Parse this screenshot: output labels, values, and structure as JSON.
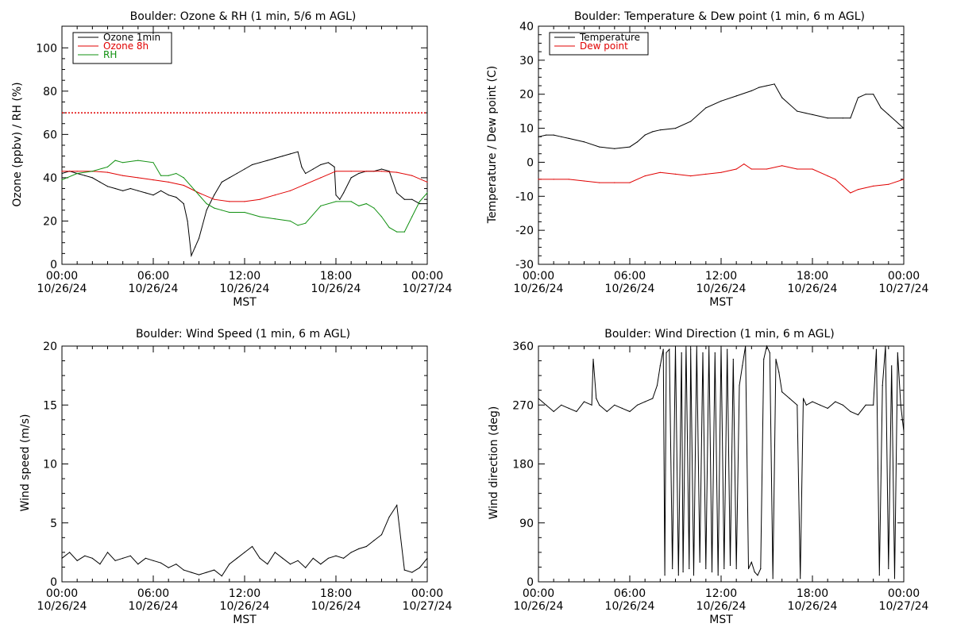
{
  "colors": {
    "black": "#000000",
    "red": "#e00000",
    "green": "#109010",
    "reference_line": "#e00000"
  },
  "x_axis_common": {
    "times": [
      "00:00",
      "06:00",
      "12:00",
      "18:00",
      "00:00"
    ],
    "dates": [
      "10/26/24",
      "10/26/24",
      "10/26/24",
      "10/26/24",
      "10/27/24"
    ],
    "label_hours": [
      0,
      6,
      12,
      18,
      24
    ],
    "xlabel": "MST"
  },
  "chart_data": [
    {
      "type": "line",
      "title": "Boulder: Ozone & RH (1 min, 5/6 m AGL)",
      "xlabel": "MST",
      "ylabel": "Ozone (ppbv) / RH (%)",
      "xlim_hours": [
        0,
        24
      ],
      "ylim": [
        0,
        110
      ],
      "yticks": [
        0,
        20,
        40,
        60,
        80,
        100
      ],
      "legend_position": "top-left",
      "reference_line": {
        "y": 70,
        "style": "dotted"
      },
      "series": [
        {
          "name": "Ozone 1min",
          "color": "#000000",
          "x": [
            0,
            0.5,
            1,
            1.5,
            2,
            2.5,
            3,
            3.5,
            4,
            4.5,
            5,
            5.5,
            6,
            6.5,
            7,
            7.5,
            8,
            8.25,
            8.5,
            8.75,
            9,
            9.5,
            10,
            10.5,
            11,
            11.5,
            12,
            12.5,
            13,
            13.5,
            14,
            14.5,
            15,
            15.5,
            15.75,
            16,
            16.5,
            17,
            17.5,
            17.9,
            18,
            18.25,
            18.5,
            19,
            19.5,
            20,
            20.5,
            21,
            21.5,
            22,
            22.5,
            23,
            23.5,
            24
          ],
          "y": [
            42,
            43,
            42,
            41,
            40,
            38,
            36,
            35,
            34,
            35,
            34,
            33,
            32,
            34,
            32,
            31,
            28,
            20,
            4,
            8,
            12,
            25,
            32,
            38,
            40,
            42,
            44,
            46,
            47,
            48,
            49,
            50,
            51,
            52,
            45,
            42,
            44,
            46,
            47,
            45,
            32,
            30,
            33,
            40,
            42,
            43,
            43,
            44,
            43,
            33,
            30,
            30,
            28,
            28
          ]
        },
        {
          "name": "Ozone 8h",
          "color": "#e00000",
          "x": [
            0,
            1,
            2,
            3,
            4,
            5,
            6,
            7,
            8,
            9,
            10,
            11,
            12,
            13,
            14,
            15,
            16,
            17,
            18,
            19,
            20,
            21,
            22,
            23,
            24
          ],
          "y": [
            43,
            43,
            43,
            42.5,
            41,
            40,
            39,
            38,
            36.5,
            33,
            30,
            29,
            29,
            30,
            32,
            34,
            37,
            40,
            43,
            43,
            43,
            43,
            42.5,
            41,
            38
          ]
        },
        {
          "name": "RH",
          "color": "#109010",
          "x": [
            0,
            1,
            2,
            3,
            3.5,
            4,
            5,
            6,
            6.5,
            7,
            7.5,
            8,
            8.5,
            9,
            9.5,
            10,
            10.5,
            11,
            12,
            13,
            14,
            15,
            15.5,
            16,
            17,
            18,
            19,
            19.5,
            20,
            20.5,
            21,
            21.5,
            22,
            22.5,
            23,
            23.5,
            24
          ],
          "y": [
            39,
            42,
            43,
            45,
            48,
            47,
            48,
            47,
            41,
            41,
            42,
            40,
            36,
            32,
            28,
            26,
            25,
            24,
            24,
            22,
            21,
            20,
            18,
            19,
            27,
            29,
            29,
            27,
            28,
            26,
            22,
            17,
            15,
            15,
            22,
            29,
            33
          ]
        }
      ]
    },
    {
      "type": "line",
      "title": "Boulder: Temperature & Dew point (1 min, 6 m AGL)",
      "xlabel": "MST",
      "ylabel": "Temperature / Dew point (C)",
      "xlim_hours": [
        0,
        24
      ],
      "ylim": [
        -30,
        40
      ],
      "yticks": [
        -30,
        -20,
        -10,
        0,
        10,
        20,
        30,
        40
      ],
      "legend_position": "top-left",
      "series": [
        {
          "name": "Temperature",
          "color": "#000000",
          "x": [
            0,
            0.5,
            1,
            1.5,
            2,
            3,
            4,
            5,
            6,
            6.5,
            7,
            7.5,
            8,
            9,
            10,
            11,
            12,
            13,
            14,
            14.5,
            15,
            15.5,
            16,
            17,
            18,
            19,
            20,
            20.5,
            21,
            21.5,
            22,
            22.5,
            23,
            24
          ],
          "y": [
            7.5,
            8,
            8,
            7.5,
            7,
            6,
            4.5,
            4,
            4.5,
            6,
            8,
            9,
            9.5,
            10,
            12,
            16,
            18,
            19.5,
            21,
            22,
            22.5,
            23,
            19,
            15,
            14,
            13,
            13,
            13,
            19,
            20,
            20,
            16,
            14,
            10
          ]
        },
        {
          "name": "Dew point",
          "color": "#e00000",
          "x": [
            0,
            1,
            2,
            3,
            4,
            5,
            6,
            7,
            8,
            9,
            10,
            11,
            12,
            13,
            13.5,
            14,
            15,
            16,
            17,
            18,
            19,
            19.5,
            20,
            20.5,
            21,
            22,
            23,
            24
          ],
          "y": [
            -5,
            -5,
            -5,
            -5.5,
            -6,
            -6,
            -6,
            -4,
            -3,
            -3.5,
            -4,
            -3.5,
            -3,
            -2,
            -0.5,
            -2,
            -2,
            -1,
            -2,
            -2,
            -4,
            -5,
            -7,
            -9,
            -8,
            -7,
            -6.5,
            -5
          ]
        }
      ]
    },
    {
      "type": "line",
      "title": "Boulder: Wind Speed (1 min, 6 m AGL)",
      "xlabel": "MST",
      "ylabel": "Wind speed (m/s)",
      "xlim_hours": [
        0,
        24
      ],
      "ylim": [
        0,
        20
      ],
      "yticks": [
        0,
        5,
        10,
        15,
        20
      ],
      "series": [
        {
          "name": "",
          "color": "#000000",
          "x": [
            0,
            0.5,
            1,
            1.5,
            2,
            2.5,
            3,
            3.5,
            4,
            4.5,
            5,
            5.5,
            6,
            6.5,
            7,
            7.5,
            8,
            8.5,
            9,
            9.5,
            10,
            10.5,
            11,
            11.5,
            12,
            12.5,
            13,
            13.5,
            14,
            14.5,
            15,
            15.5,
            16,
            16.5,
            17,
            17.5,
            18,
            18.5,
            19,
            19.5,
            20,
            20.5,
            21,
            21.5,
            22,
            22.5,
            23,
            23.5,
            24
          ],
          "y": [
            2,
            2.5,
            1.8,
            2.2,
            2,
            1.5,
            2.5,
            1.8,
            2,
            2.2,
            1.5,
            2,
            1.8,
            1.6,
            1.2,
            1.5,
            1,
            0.8,
            0.6,
            0.8,
            1,
            0.5,
            1.5,
            2,
            2.5,
            3,
            2,
            1.5,
            2.5,
            2,
            1.5,
            1.8,
            1.2,
            2,
            1.5,
            2,
            2.2,
            2,
            2.5,
            2.8,
            3,
            3.5,
            4,
            5.5,
            6.5,
            1,
            0.8,
            1.2,
            2
          ]
        }
      ]
    },
    {
      "type": "line",
      "title": "Boulder: Wind Direction (1 min, 6 m AGL)",
      "xlabel": "MST",
      "ylabel": "Wind direction (deg)",
      "xlim_hours": [
        0,
        24
      ],
      "ylim": [
        0,
        360
      ],
      "yticks": [
        0,
        90,
        180,
        270,
        360
      ],
      "series": [
        {
          "name": "",
          "color": "#000000",
          "x": [
            0,
            0.5,
            1,
            1.5,
            2,
            2.5,
            3,
            3.5,
            3.6,
            3.8,
            4,
            4.5,
            5,
            5.5,
            6,
            6.5,
            7,
            7.5,
            7.8,
            8,
            8.2,
            8.3,
            8.4,
            8.6,
            8.8,
            9,
            9.2,
            9.4,
            9.5,
            9.7,
            9.9,
            10,
            10.2,
            10.4,
            10.6,
            10.8,
            11,
            11.2,
            11.4,
            11.6,
            11.8,
            12,
            12.2,
            12.4,
            12.6,
            12.8,
            13,
            13.2,
            13.4,
            13.6,
            13.8,
            14,
            14.2,
            14.4,
            14.6,
            14.8,
            15,
            15.2,
            15.4,
            15.6,
            15.8,
            16,
            16.5,
            17,
            17.2,
            17.4,
            17.6,
            18,
            18.5,
            19,
            19.5,
            20,
            20.5,
            21,
            21.5,
            22,
            22.2,
            22.4,
            22.6,
            22.8,
            23,
            23.2,
            23.4,
            23.6,
            23.8,
            24
          ],
          "y": [
            280,
            270,
            260,
            270,
            265,
            260,
            275,
            270,
            340,
            280,
            270,
            260,
            270,
            265,
            260,
            270,
            275,
            280,
            300,
            330,
            355,
            10,
            350,
            355,
            20,
            360,
            10,
            350,
            15,
            360,
            20,
            355,
            10,
            360,
            30,
            350,
            20,
            360,
            15,
            350,
            10,
            360,
            20,
            355,
            25,
            340,
            20,
            300,
            330,
            360,
            20,
            30,
            15,
            10,
            20,
            340,
            360,
            350,
            5,
            340,
            320,
            290,
            280,
            270,
            5,
            280,
            270,
            275,
            270,
            265,
            275,
            270,
            260,
            255,
            270,
            270,
            355,
            10,
            300,
            360,
            20,
            330,
            5,
            350,
            270,
            230
          ]
        }
      ]
    }
  ]
}
